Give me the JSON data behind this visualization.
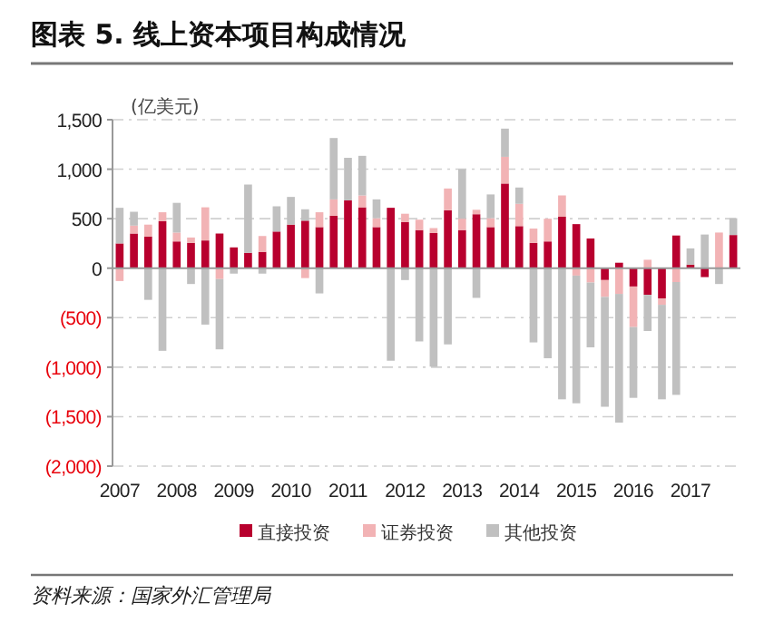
{
  "chart_data": {
    "type": "bar",
    "title": "图表 5. 线上资本项目构成情况",
    "ylabel": "(亿美元)",
    "stacked": true,
    "categories": [
      "2007",
      null,
      null,
      null,
      "2008",
      null,
      null,
      null,
      "2009",
      null,
      null,
      null,
      "2010",
      null,
      null,
      null,
      "2011",
      null,
      null,
      null,
      "2012",
      null,
      null,
      null,
      "2013",
      null,
      null,
      null,
      "2014",
      null,
      null,
      null,
      "2015",
      null,
      null,
      null,
      "2016",
      null,
      null,
      null,
      "2017",
      null,
      null,
      null
    ],
    "series": [
      {
        "name": "直接投资",
        "color": "#b8002e",
        "values": [
          250,
          350,
          320,
          475,
          270,
          255,
          280,
          350,
          210,
          155,
          165,
          370,
          440,
          480,
          415,
          530,
          685,
          615,
          415,
          610,
          465,
          385,
          355,
          585,
          385,
          545,
          415,
          855,
          425,
          255,
          270,
          520,
          445,
          300,
          -120,
          55,
          -185,
          -270,
          -305,
          330,
          35,
          -90,
          0,
          335
        ]
      },
      {
        "name": "证券投资",
        "color": "#f2b3b5",
        "values": [
          -130,
          80,
          120,
          90,
          90,
          55,
          335,
          -110,
          null,
          null,
          160,
          0,
          0,
          -100,
          150,
          165,
          null,
          120,
          90,
          0,
          85,
          105,
          50,
          220,
          115,
          45,
          90,
          270,
          225,
          145,
          230,
          215,
          -75,
          -145,
          -170,
          -260,
          -410,
          85,
          -65,
          -140,
          0,
          null,
          360,
          0
        ]
      },
      {
        "name": "其他投资",
        "color": "#c0c0c0",
        "values": [
          360,
          140,
          -320,
          -835,
          300,
          -160,
          -570,
          -710,
          -55,
          690,
          -55,
          255,
          280,
          115,
          -255,
          620,
          430,
          400,
          190,
          -935,
          -120,
          -740,
          -995,
          -770,
          500,
          -300,
          240,
          285,
          165,
          -750,
          -910,
          -1325,
          -1290,
          -655,
          -1110,
          -1300,
          -715,
          -365,
          -955,
          -1140,
          165,
          340,
          -160,
          170
        ]
      }
    ],
    "ylim": [
      -2000,
      1500
    ],
    "yticks": [
      {
        "value": -2000,
        "label": "(2,000)"
      },
      {
        "value": -1500,
        "label": "(1,500)"
      },
      {
        "value": -1000,
        "label": "(1,000)"
      },
      {
        "value": -500,
        "label": "(500)"
      },
      0,
      {
        "value": 500,
        "label": "500"
      },
      {
        "value": 1000,
        "label": "1,000"
      },
      {
        "value": 1500,
        "label": "1,500"
      }
    ],
    "grid": "y",
    "legend": "bottom",
    "annotations": [
      "资料来源：国家外汇管理局"
    ]
  }
}
